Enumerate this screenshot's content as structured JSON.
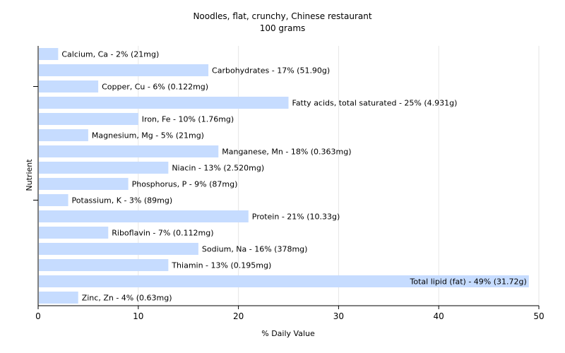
{
  "chart_data": {
    "type": "bar",
    "orientation": "horizontal",
    "title": "Noodles, flat, crunchy, Chinese restaurant",
    "subtitle": "100 grams",
    "xlabel": "% Daily Value",
    "ylabel": "Nutrient",
    "xlim": [
      0,
      50
    ],
    "xticks": [
      0,
      10,
      20,
      30,
      40,
      50
    ],
    "grid": "vertical",
    "bar_color": "#c6dcff",
    "categories": [
      "Calcium, Ca",
      "Carbohydrates",
      "Copper, Cu",
      "Fatty acids, total saturated",
      "Iron, Fe",
      "Magnesium, Mg",
      "Manganese, Mn",
      "Niacin",
      "Phosphorus, P",
      "Potassium, K",
      "Protein",
      "Riboflavin",
      "Sodium, Na",
      "Thiamin",
      "Total lipid (fat)",
      "Zinc, Zn"
    ],
    "values": [
      2,
      17,
      6,
      25,
      10,
      5,
      18,
      13,
      9,
      3,
      21,
      7,
      16,
      13,
      49,
      4
    ],
    "labels": [
      "Calcium, Ca - 2% (21mg)",
      "Carbohydrates - 17% (51.90g)",
      "Copper, Cu - 6% (0.122mg)",
      "Fatty acids, total saturated - 25% (4.931g)",
      "Iron, Fe - 10% (1.76mg)",
      "Magnesium, Mg - 5% (21mg)",
      "Manganese, Mn - 18% (0.363mg)",
      "Niacin - 13% (2.520mg)",
      "Phosphorus, P - 9% (87mg)",
      "Potassium, K - 3% (89mg)",
      "Protein - 21% (10.33g)",
      "Riboflavin - 7% (0.112mg)",
      "Sodium, Na - 16% (378mg)",
      "Thiamin - 13% (0.195mg)",
      "Total lipid (fat) - 49% (31.72g)",
      "Zinc, Zn - 4% (0.63mg)"
    ]
  }
}
